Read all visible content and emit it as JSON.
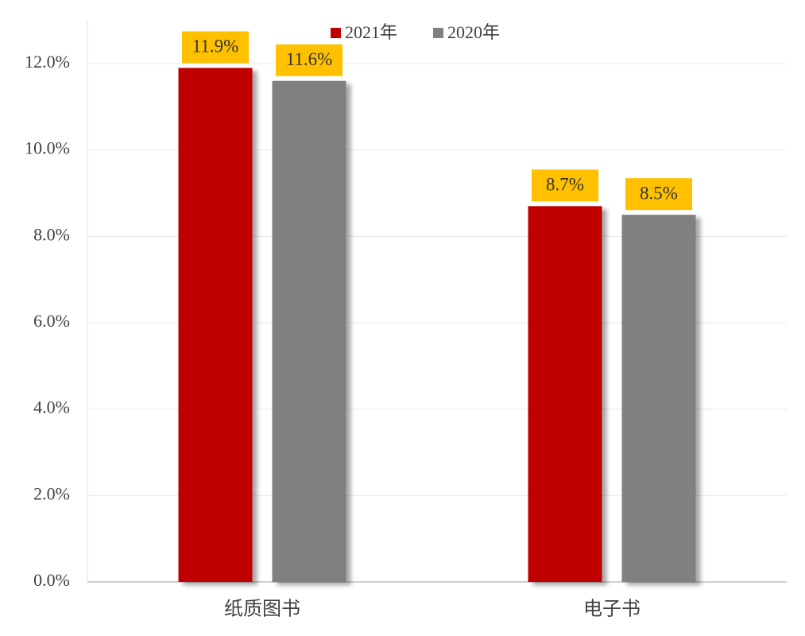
{
  "chart_data": {
    "type": "bar",
    "categories": [
      "纸质图书",
      "电子书"
    ],
    "series": [
      {
        "name": "2021年",
        "color": "#c00000",
        "values": [
          11.9,
          8.7
        ],
        "value_labels": [
          "11.9%",
          "8.7%"
        ]
      },
      {
        "name": "2020年",
        "color": "#808080",
        "values": [
          11.6,
          8.5
        ],
        "value_labels": [
          "11.6%",
          "8.5%"
        ]
      }
    ],
    "ylim": [
      0,
      13
    ],
    "yticks": [
      {
        "value": 0,
        "label": "0.0%"
      },
      {
        "value": 2,
        "label": "2.0%"
      },
      {
        "value": 4,
        "label": "4.0%"
      },
      {
        "value": 6,
        "label": "6.0%"
      },
      {
        "value": 8,
        "label": "8.0%"
      },
      {
        "value": 10,
        "label": "10.0%"
      },
      {
        "value": 12,
        "label": "12.0%"
      }
    ],
    "grid": true,
    "legend": "top",
    "value_label_color": "#ffc000"
  }
}
